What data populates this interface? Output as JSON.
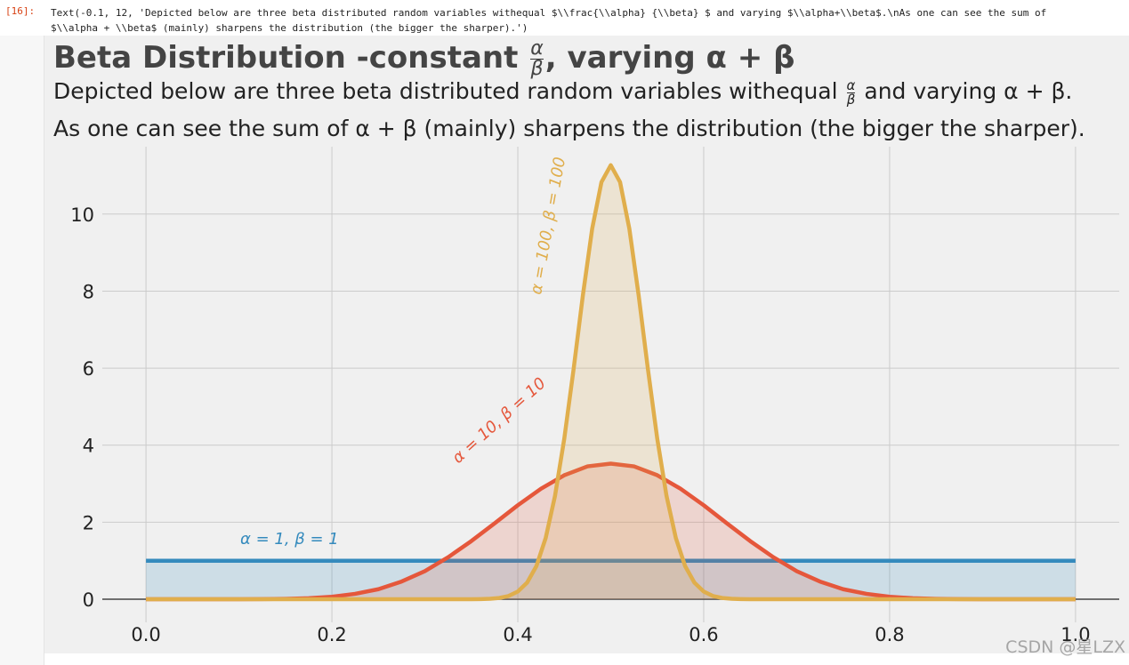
{
  "cell": {
    "prompt": "[16]:",
    "output_lines": [
      "Text(-0.1, 12, 'Depicted below are three beta distributed random variables withequal $\\\\frac{\\\\alpha} {\\\\beta} $ and varying $\\\\alpha+\\\\beta$.\\nAs one can see the sum of",
      "$\\\\alpha + \\\\beta$ (mainly) sharpens the distribution (the bigger the sharper).')"
    ]
  },
  "chart_data": {
    "type": "line",
    "title": {
      "prefix": "Beta Distribution -constant",
      "frac_num": "α",
      "frac_den": "β",
      "suffix": ", varying α + β"
    },
    "subtitle": {
      "prefix": "Depicted below are three beta distributed random variables withequal",
      "frac_num": "α",
      "frac_den": "β",
      "suffix": "and varying α + β.",
      "line2": "As one can see the sum of α + β (mainly) sharpens the distribution (the bigger the sharper)."
    },
    "xlim": [
      -0.047,
      1.047
    ],
    "ylim": [
      -0.6,
      11.75
    ],
    "xticks": [
      {
        "value": 0,
        "label": "0.0"
      },
      0.2,
      0.4,
      0.6,
      0.8,
      {
        "value": 1,
        "label": "1.0"
      }
    ],
    "yticks": [
      0,
      2,
      4,
      6,
      8,
      10
    ],
    "grid": true,
    "fill": true,
    "series": [
      {
        "name": "α = 1, β = 1",
        "color": "#348abd",
        "x": [
          0,
          1
        ],
        "values": [
          1,
          1
        ]
      },
      {
        "name": "α = 10, β = 10",
        "color": "#e5573b",
        "x": [
          0,
          0.05,
          0.1,
          0.125,
          0.15,
          0.175,
          0.2,
          0.225,
          0.25,
          0.275,
          0.3,
          0.325,
          0.35,
          0.375,
          0.4,
          0.425,
          0.45,
          0.475,
          0.5,
          0.525,
          0.55,
          0.575,
          0.6,
          0.625,
          0.65,
          0.675,
          0.7,
          0.725,
          0.75,
          0.775,
          0.8,
          0.825,
          0.85,
          0.875,
          0.9,
          0.95,
          1
        ],
        "values": [
          0,
          0,
          0.0004,
          0.002,
          0.008,
          0.025,
          0.063,
          0.14,
          0.26,
          0.46,
          0.73,
          1.09,
          1.51,
          1.97,
          2.44,
          2.87,
          3.22,
          3.45,
          3.52,
          3.45,
          3.22,
          2.87,
          2.44,
          1.97,
          1.51,
          1.09,
          0.73,
          0.46,
          0.26,
          0.14,
          0.063,
          0.025,
          0.008,
          0.002,
          0.0004,
          0,
          0
        ]
      },
      {
        "name": "α = 100, β = 100",
        "color": "#e0ae4c",
        "x": [
          0,
          0.35,
          0.36,
          0.37,
          0.38,
          0.39,
          0.4,
          0.41,
          0.42,
          0.43,
          0.44,
          0.45,
          0.46,
          0.47,
          0.48,
          0.49,
          0.5,
          0.51,
          0.52,
          0.53,
          0.54,
          0.55,
          0.56,
          0.57,
          0.58,
          0.59,
          0.6,
          0.61,
          0.62,
          0.63,
          0.64,
          0.65,
          1
        ],
        "values": [
          0,
          0,
          0.003,
          0.011,
          0.032,
          0.083,
          0.2,
          0.43,
          0.86,
          1.59,
          2.68,
          4.17,
          5.97,
          7.89,
          9.62,
          10.83,
          11.27,
          10.83,
          9.62,
          7.89,
          5.97,
          4.17,
          2.68,
          1.59,
          0.86,
          0.43,
          0.2,
          0.083,
          0.032,
          0.011,
          0.003,
          0,
          0
        ]
      }
    ],
    "watermark": "CSDN @星LZX"
  }
}
